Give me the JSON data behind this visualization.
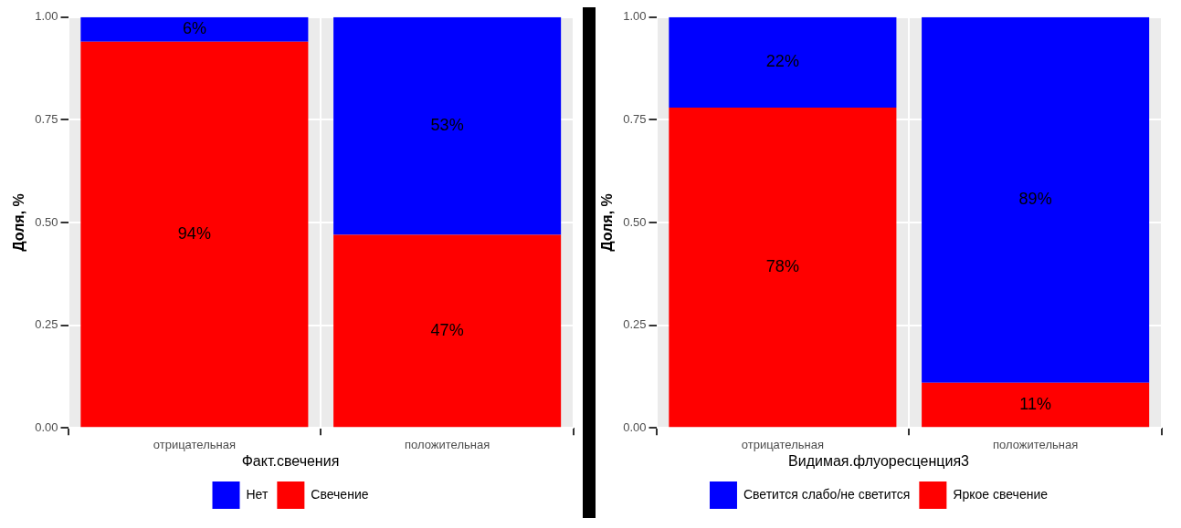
{
  "chart_data": [
    {
      "type": "bar",
      "stacked": true,
      "ylabel": "Доля, %",
      "legend_title": "Факт.свечения",
      "legend": "bottom",
      "grid": true,
      "categories": [
        "отрицательная",
        "положительная"
      ],
      "ylim": [
        0,
        1
      ],
      "yticks": [
        {
          "value": 0,
          "label": "0.00"
        },
        {
          "value": 0.25,
          "label": "0.25"
        },
        {
          "value": 0.5,
          "label": "0.50"
        },
        {
          "value": 0.75,
          "label": "0.75"
        },
        {
          "value": 1,
          "label": "1.00"
        }
      ],
      "series": [
        {
          "name": "Свечение",
          "color": "#ff0000",
          "values": [
            0.94,
            0.47
          ],
          "value_labels": [
            "94%",
            "47%"
          ]
        },
        {
          "name": "Нет",
          "color": "#0000ff",
          "values": [
            0.06,
            0.53
          ],
          "value_labels": [
            "6%",
            "53%"
          ]
        }
      ]
    },
    {
      "type": "bar",
      "stacked": true,
      "ylabel": "Доля, %",
      "legend_title": "Видимая.флуоресценция3",
      "legend": "bottom",
      "grid": true,
      "categories": [
        "отрицательная",
        "положительная"
      ],
      "ylim": [
        0,
        1
      ],
      "yticks": [
        {
          "value": 0,
          "label": "0.00"
        },
        {
          "value": 0.25,
          "label": "0.25"
        },
        {
          "value": 0.5,
          "label": "0.50"
        },
        {
          "value": 0.75,
          "label": "0.75"
        },
        {
          "value": 1,
          "label": "1.00"
        }
      ],
      "series": [
        {
          "name": "Яркое свечение",
          "color": "#ff0000",
          "values": [
            0.78,
            0.11
          ],
          "value_labels": [
            "78%",
            "11%"
          ]
        },
        {
          "name": "Светится слабо/не светится",
          "color": "#0000ff",
          "values": [
            0.22,
            0.89
          ],
          "value_labels": [
            "22%",
            "89%"
          ]
        }
      ]
    }
  ]
}
